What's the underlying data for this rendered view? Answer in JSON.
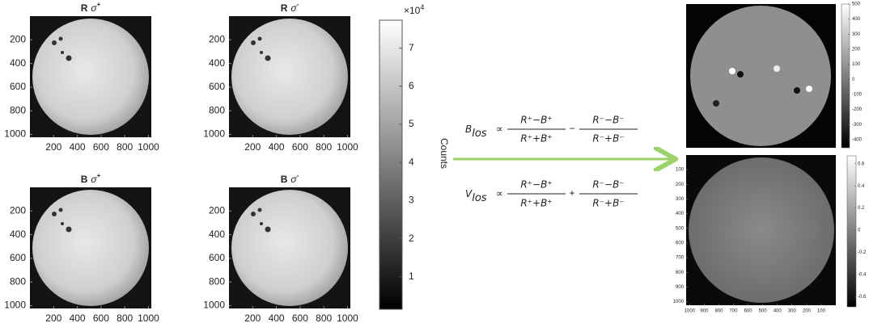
{
  "panels": [
    {
      "band": "R",
      "symbol": "σ",
      "polarity": "+"
    },
    {
      "band": "R",
      "symbol": "σ",
      "polarity": "-"
    },
    {
      "band": "B",
      "symbol": "σ",
      "polarity": "+"
    },
    {
      "band": "B",
      "symbol": "σ",
      "polarity": "-"
    }
  ],
  "image_axes": {
    "xticks": [
      200,
      400,
      600,
      800,
      1000
    ],
    "yticks": [
      200,
      400,
      600,
      800,
      1000
    ]
  },
  "colorbar": {
    "multiplier": "×10",
    "exponent": "4",
    "ticks": [
      1,
      2,
      3,
      4,
      5,
      6,
      7
    ],
    "label": "Counts"
  },
  "equations": [
    {
      "lhs": "B",
      "sub": "los",
      "prop": "∝",
      "num1": "R⁺−B⁺",
      "den1": "R⁺+B⁺",
      "op": "−",
      "num2": "R⁻−B⁻",
      "den2": "R⁻+B⁻"
    },
    {
      "lhs": "V",
      "sub": "los",
      "prop": "∝",
      "num1": "R⁺−B⁺",
      "den1": "R⁺+B⁺",
      "op": "+",
      "num2": "R⁻−B⁻",
      "den2": "R⁻+B⁻"
    }
  ],
  "magnetogram": {
    "colorbar_ticks": [
      500,
      400,
      300,
      200,
      100,
      0,
      -100,
      -200,
      -300,
      -400
    ]
  },
  "dopplergram": {
    "xticks": [
      1000,
      900,
      800,
      700,
      600,
      500,
      400,
      300,
      200,
      100
    ],
    "yticks": [
      100,
      200,
      300,
      400,
      500,
      600,
      700,
      800,
      900,
      1000
    ],
    "colorbar_ticks": [
      0.6,
      0.4,
      0.2,
      0,
      -0.2,
      -0.4,
      -0.6
    ]
  }
}
